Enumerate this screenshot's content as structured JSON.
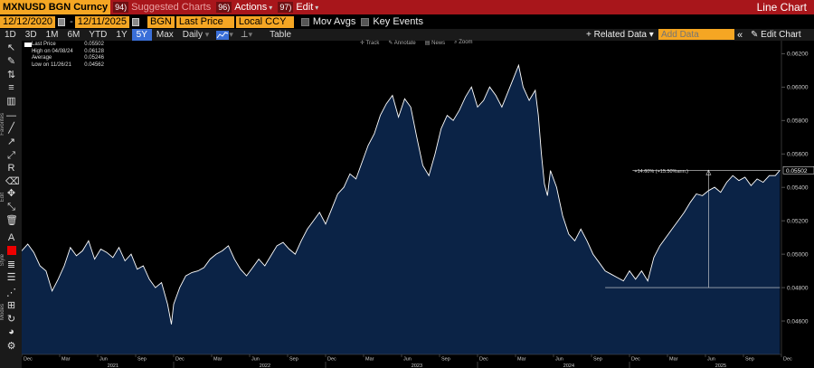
{
  "topbar": {
    "ticker": "MXNUSD BGN Curncy",
    "suggested": "Suggested Charts",
    "suggested_num": "94)",
    "actions": "Actions",
    "actions_num": "96)",
    "edit": "Edit",
    "edit_num": "97)",
    "title": "Line Chart"
  },
  "bar2": {
    "start_date": "12/12/2020",
    "end_date": "12/11/2025",
    "source": "BGN",
    "field": "Last Price",
    "currency": "Local CCY",
    "mov_avgs": "Mov Avgs",
    "key_events": "Key Events"
  },
  "bar3": {
    "ranges": [
      "1D",
      "3D",
      "1M",
      "6M",
      "YTD",
      "1Y",
      "5Y",
      "Max"
    ],
    "selected_range": "5Y",
    "frequency": "Daily",
    "table": "Table",
    "related": "+ Related Data",
    "add_data_placeholder": "Add Data",
    "edit_chart": "Edit Chart"
  },
  "toolbar_labels": {
    "favorites": "Favorites",
    "edit": "Edit",
    "style": "Style",
    "modes": "Modes"
  },
  "annotation_bar": {
    "track": "Track",
    "annotate": "Annotate",
    "news": "News",
    "zoom": "Zoom"
  },
  "legend": {
    "last_price_label": "Last Price",
    "last_price_value": "0.05502",
    "high_label": "High on 04/08/24",
    "high_value": "0.06128",
    "average_label": "Average",
    "average_value": "0.05246",
    "low_label": "Low on 11/26/21",
    "low_value": "0.04562"
  },
  "annotation": {
    "text": "+14.60% (+15.50%ann.)"
  },
  "colors": {
    "accent": "#f5a623",
    "topbar": "#a8161b",
    "area_fill": "#0b2346",
    "line": "#ffffff",
    "selected_range": "#3a6fd8"
  },
  "chart_data": {
    "type": "area",
    "title": "",
    "xlabel": "",
    "ylabel": "",
    "ylim": [
      0.044,
      0.0625
    ],
    "y_ticks": [
      "0.04600",
      "0.04800",
      "0.05000",
      "0.05200",
      "0.05400",
      "0.05600",
      "0.05800",
      "0.06000",
      "0.06200"
    ],
    "y_tick_values": [
      0.046,
      0.048,
      0.05,
      0.052,
      0.054,
      0.056,
      0.058,
      0.06,
      0.062
    ],
    "last_value_label": "0.05502",
    "x_month_ticks": [
      {
        "t": 0.0,
        "label": "Dec"
      },
      {
        "t": 0.25,
        "label": "Mar"
      },
      {
        "t": 0.5,
        "label": "Jun"
      },
      {
        "t": 0.75,
        "label": "Sep"
      },
      {
        "t": 1.0,
        "label": "Dec"
      },
      {
        "t": 1.25,
        "label": "Mar"
      },
      {
        "t": 1.5,
        "label": "Jun"
      },
      {
        "t": 1.75,
        "label": "Sep"
      },
      {
        "t": 2.0,
        "label": "Dec"
      },
      {
        "t": 2.25,
        "label": "Mar"
      },
      {
        "t": 2.5,
        "label": "Jun"
      },
      {
        "t": 2.75,
        "label": "Sep"
      },
      {
        "t": 3.0,
        "label": "Dec"
      },
      {
        "t": 3.25,
        "label": "Mar"
      },
      {
        "t": 3.5,
        "label": "Jun"
      },
      {
        "t": 3.75,
        "label": "Sep"
      },
      {
        "t": 4.0,
        "label": "Dec"
      },
      {
        "t": 4.25,
        "label": "Mar"
      },
      {
        "t": 4.5,
        "label": "Jun"
      },
      {
        "t": 4.75,
        "label": "Sep"
      },
      {
        "t": 5.0,
        "label": "Dec"
      }
    ],
    "x_year_labels": [
      {
        "t": 0.6,
        "label": "2021"
      },
      {
        "t": 1.6,
        "label": "2022"
      },
      {
        "t": 2.6,
        "label": "2023"
      },
      {
        "t": 3.6,
        "label": "2024"
      },
      {
        "t": 4.6,
        "label": "2025"
      }
    ],
    "x_range": [
      0,
      5.0
    ],
    "series": [
      {
        "points": [
          [
            0.0,
            0.0502
          ],
          [
            0.04,
            0.0506
          ],
          [
            0.08,
            0.0501
          ],
          [
            0.12,
            0.0493
          ],
          [
            0.16,
            0.049
          ],
          [
            0.2,
            0.0478
          ],
          [
            0.24,
            0.0485
          ],
          [
            0.28,
            0.0493
          ],
          [
            0.32,
            0.0504
          ],
          [
            0.36,
            0.0499
          ],
          [
            0.4,
            0.0502
          ],
          [
            0.44,
            0.0508
          ],
          [
            0.48,
            0.0497
          ],
          [
            0.52,
            0.0503
          ],
          [
            0.56,
            0.0501
          ],
          [
            0.6,
            0.0498
          ],
          [
            0.64,
            0.0504
          ],
          [
            0.68,
            0.0496
          ],
          [
            0.72,
            0.05
          ],
          [
            0.76,
            0.0491
          ],
          [
            0.8,
            0.0493
          ],
          [
            0.84,
            0.0485
          ],
          [
            0.88,
            0.048
          ],
          [
            0.92,
            0.0483
          ],
          [
            0.96,
            0.047
          ],
          [
            0.985,
            0.0458
          ],
          [
            1.0,
            0.047
          ],
          [
            1.04,
            0.048
          ],
          [
            1.08,
            0.0487
          ],
          [
            1.12,
            0.0489
          ],
          [
            1.16,
            0.049
          ],
          [
            1.2,
            0.0492
          ],
          [
            1.24,
            0.0497
          ],
          [
            1.28,
            0.05
          ],
          [
            1.32,
            0.0502
          ],
          [
            1.36,
            0.0505
          ],
          [
            1.4,
            0.0497
          ],
          [
            1.44,
            0.0491
          ],
          [
            1.48,
            0.0487
          ],
          [
            1.52,
            0.0492
          ],
          [
            1.56,
            0.0497
          ],
          [
            1.6,
            0.0493
          ],
          [
            1.64,
            0.0499
          ],
          [
            1.68,
            0.0505
          ],
          [
            1.72,
            0.0507
          ],
          [
            1.76,
            0.0503
          ],
          [
            1.8,
            0.05
          ],
          [
            1.84,
            0.0508
          ],
          [
            1.88,
            0.0515
          ],
          [
            1.92,
            0.052
          ],
          [
            1.96,
            0.0525
          ],
          [
            2.0,
            0.0518
          ],
          [
            2.04,
            0.0527
          ],
          [
            2.08,
            0.0536
          ],
          [
            2.12,
            0.054
          ],
          [
            2.16,
            0.0548
          ],
          [
            2.2,
            0.0545
          ],
          [
            2.24,
            0.0555
          ],
          [
            2.28,
            0.0565
          ],
          [
            2.32,
            0.0572
          ],
          [
            2.36,
            0.0583
          ],
          [
            2.4,
            0.059
          ],
          [
            2.44,
            0.0595
          ],
          [
            2.48,
            0.0582
          ],
          [
            2.52,
            0.0593
          ],
          [
            2.56,
            0.0588
          ],
          [
            2.6,
            0.057
          ],
          [
            2.64,
            0.0553
          ],
          [
            2.68,
            0.0547
          ],
          [
            2.72,
            0.056
          ],
          [
            2.76,
            0.0575
          ],
          [
            2.8,
            0.0583
          ],
          [
            2.84,
            0.058
          ],
          [
            2.88,
            0.0586
          ],
          [
            2.92,
            0.0594
          ],
          [
            2.96,
            0.06
          ],
          [
            3.0,
            0.0588
          ],
          [
            3.04,
            0.0592
          ],
          [
            3.08,
            0.06
          ],
          [
            3.12,
            0.0595
          ],
          [
            3.16,
            0.0588
          ],
          [
            3.2,
            0.0597
          ],
          [
            3.24,
            0.0606
          ],
          [
            3.27,
            0.0613
          ],
          [
            3.3,
            0.06
          ],
          [
            3.34,
            0.0592
          ],
          [
            3.38,
            0.0598
          ],
          [
            3.4,
            0.0583
          ],
          [
            3.42,
            0.056
          ],
          [
            3.44,
            0.0542
          ],
          [
            3.46,
            0.0535
          ],
          [
            3.48,
            0.055
          ],
          [
            3.52,
            0.054
          ],
          [
            3.56,
            0.0523
          ],
          [
            3.6,
            0.0512
          ],
          [
            3.64,
            0.0508
          ],
          [
            3.68,
            0.0515
          ],
          [
            3.72,
            0.0508
          ],
          [
            3.76,
            0.05
          ],
          [
            3.8,
            0.0495
          ],
          [
            3.84,
            0.049
          ],
          [
            3.88,
            0.0488
          ],
          [
            3.92,
            0.0486
          ],
          [
            3.96,
            0.0484
          ],
          [
            4.0,
            0.049
          ],
          [
            4.04,
            0.0485
          ],
          [
            4.08,
            0.049
          ],
          [
            4.12,
            0.0484
          ],
          [
            4.16,
            0.0498
          ],
          [
            4.2,
            0.0505
          ],
          [
            4.24,
            0.051
          ],
          [
            4.28,
            0.0515
          ],
          [
            4.32,
            0.052
          ],
          [
            4.36,
            0.0525
          ],
          [
            4.4,
            0.0531
          ],
          [
            4.44,
            0.0536
          ],
          [
            4.48,
            0.0535
          ],
          [
            4.52,
            0.0538
          ],
          [
            4.56,
            0.054
          ],
          [
            4.6,
            0.0537
          ],
          [
            4.64,
            0.0543
          ],
          [
            4.68,
            0.0547
          ],
          [
            4.72,
            0.0544
          ],
          [
            4.76,
            0.0546
          ],
          [
            4.8,
            0.0541
          ],
          [
            4.84,
            0.0545
          ],
          [
            4.88,
            0.0543
          ],
          [
            4.92,
            0.0547
          ],
          [
            4.96,
            0.0547
          ],
          [
            4.99,
            0.05502
          ]
        ]
      }
    ]
  }
}
